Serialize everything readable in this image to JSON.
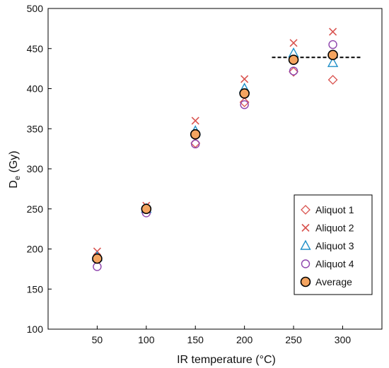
{
  "chart_data": {
    "type": "scatter",
    "title": "",
    "xlabel": "IR temperature (°C)",
    "ylabel_main": "D",
    "ylabel_sub": "e",
    "ylabel_unit": " (Gy)",
    "xlim": [
      0,
      340
    ],
    "ylim": [
      100,
      500
    ],
    "xticks": [
      50,
      100,
      150,
      200,
      250,
      300
    ],
    "yticks": [
      100,
      150,
      200,
      250,
      300,
      350,
      400,
      450,
      500
    ],
    "grid": false,
    "legend_position": "bottom-right",
    "series": [
      {
        "name": "Aliquot 1",
        "marker": "diamond",
        "color": "#d9534f",
        "points": [
          [
            50,
            188
          ],
          [
            100,
            251
          ],
          [
            150,
            332
          ],
          [
            200,
            383
          ],
          [
            250,
            421
          ],
          [
            290,
            411
          ]
        ]
      },
      {
        "name": "Aliquot 2",
        "marker": "x",
        "color": "#d9534f",
        "points": [
          [
            50,
            197
          ],
          [
            100,
            254
          ],
          [
            150,
            360
          ],
          [
            200,
            412
          ],
          [
            250,
            457
          ],
          [
            290,
            471
          ]
        ]
      },
      {
        "name": "Aliquot 3",
        "marker": "triangle",
        "color": "#1f8fc8",
        "points": [
          [
            50,
            190
          ],
          [
            100,
            250
          ],
          [
            150,
            347
          ],
          [
            200,
            400
          ],
          [
            250,
            444
          ],
          [
            290,
            432
          ]
        ]
      },
      {
        "name": "Aliquot 4",
        "marker": "circle",
        "color": "#8e44ad",
        "points": [
          [
            50,
            178
          ],
          [
            100,
            245
          ],
          [
            150,
            331
          ],
          [
            200,
            380
          ],
          [
            250,
            422
          ],
          [
            290,
            455
          ]
        ]
      },
      {
        "name": "Average",
        "marker": "filled-circle",
        "color": "#f4a460",
        "points": [
          [
            50,
            188
          ],
          [
            100,
            250
          ],
          [
            150,
            343
          ],
          [
            200,
            394
          ],
          [
            250,
            436
          ],
          [
            290,
            442
          ]
        ]
      }
    ],
    "reference_line": {
      "style": "dashed",
      "y": 439,
      "x_range": [
        228,
        318
      ],
      "color": "#000000"
    }
  }
}
